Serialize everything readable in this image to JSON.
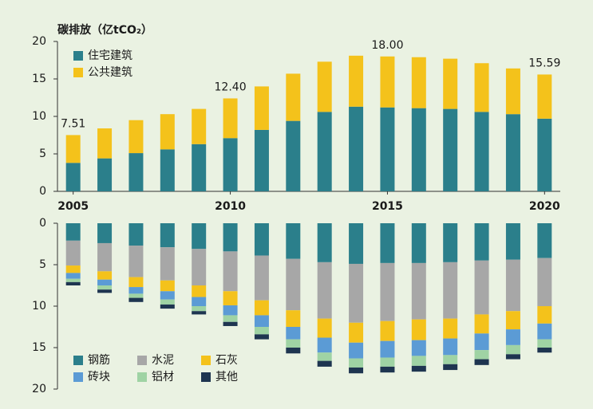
{
  "chart_data": [
    {
      "type": "stacked_bar",
      "ylabel": "碳排放（亿tCO₂）",
      "x": [
        2005,
        2006,
        2007,
        2008,
        2009,
        2010,
        2011,
        2012,
        2013,
        2014,
        2015,
        2016,
        2017,
        2018,
        2019,
        2020
      ],
      "xlim": [
        2004.5,
        2020.5
      ],
      "xticks": [
        2005,
        2010,
        2015,
        2020
      ],
      "ylim": [
        0,
        20
      ],
      "yticks": [
        0,
        5,
        10,
        15,
        20
      ],
      "legend": "upper left",
      "series": [
        {
          "name": "住宅建筑",
          "color": "#2b7f8b",
          "values": [
            3.8,
            4.4,
            5.1,
            5.6,
            6.3,
            7.1,
            8.2,
            9.4,
            10.6,
            11.3,
            11.2,
            11.1,
            11.0,
            10.6,
            10.3,
            9.7
          ]
        },
        {
          "name": "公共建筑",
          "color": "#f4c21b",
          "values": [
            3.71,
            4.0,
            4.4,
            4.7,
            4.7,
            5.3,
            5.8,
            6.3,
            6.7,
            6.8,
            6.8,
            6.8,
            6.7,
            6.5,
            6.1,
            5.89
          ]
        }
      ],
      "annotations": [
        {
          "x": 2005,
          "text": "7.51"
        },
        {
          "x": 2010,
          "text": "12.40"
        },
        {
          "x": 2015,
          "text": "18.00"
        },
        {
          "x": 2020,
          "text": "15.59"
        }
      ]
    },
    {
      "type": "stacked_bar",
      "yinvert": true,
      "ylim": [
        0,
        20
      ],
      "yticks": [
        0,
        5,
        10,
        15,
        20
      ],
      "legend": "lower left",
      "series": [
        {
          "name": "钢筋",
          "color": "#2b7f8b",
          "values": [
            2.1,
            2.4,
            2.7,
            2.9,
            3.1,
            3.4,
            3.9,
            4.3,
            4.7,
            4.9,
            4.8,
            4.8,
            4.7,
            4.5,
            4.4,
            4.2
          ]
        },
        {
          "name": "水泥",
          "color": "#a7a7a7",
          "values": [
            3.0,
            3.4,
            3.8,
            4.0,
            4.4,
            4.8,
            5.4,
            6.2,
            6.8,
            7.1,
            7.0,
            6.8,
            6.8,
            6.5,
            6.2,
            5.8
          ]
        },
        {
          "name": "石灰",
          "color": "#f4c21b",
          "values": [
            0.9,
            1.0,
            1.2,
            1.3,
            1.4,
            1.7,
            1.8,
            2.0,
            2.3,
            2.4,
            2.4,
            2.5,
            2.4,
            2.3,
            2.2,
            2.1
          ]
        },
        {
          "name": "砖块",
          "color": "#5b9bd5",
          "values": [
            0.7,
            0.7,
            0.8,
            1.0,
            1.1,
            1.2,
            1.4,
            1.5,
            1.8,
            1.9,
            2.0,
            1.9,
            2.0,
            2.0,
            1.9,
            1.9
          ]
        },
        {
          "name": "铝材",
          "color": "#9fd3a4",
          "values": [
            0.4,
            0.5,
            0.5,
            0.6,
            0.6,
            0.8,
            0.9,
            1.0,
            1.0,
            1.1,
            1.1,
            1.2,
            1.1,
            1.1,
            1.1,
            1.0
          ]
        },
        {
          "name": "其他",
          "color": "#1e3550",
          "values": [
            0.4,
            0.4,
            0.5,
            0.5,
            0.4,
            0.5,
            0.6,
            0.7,
            0.7,
            0.7,
            0.7,
            0.7,
            0.7,
            0.7,
            0.6,
            0.6
          ]
        }
      ]
    }
  ]
}
